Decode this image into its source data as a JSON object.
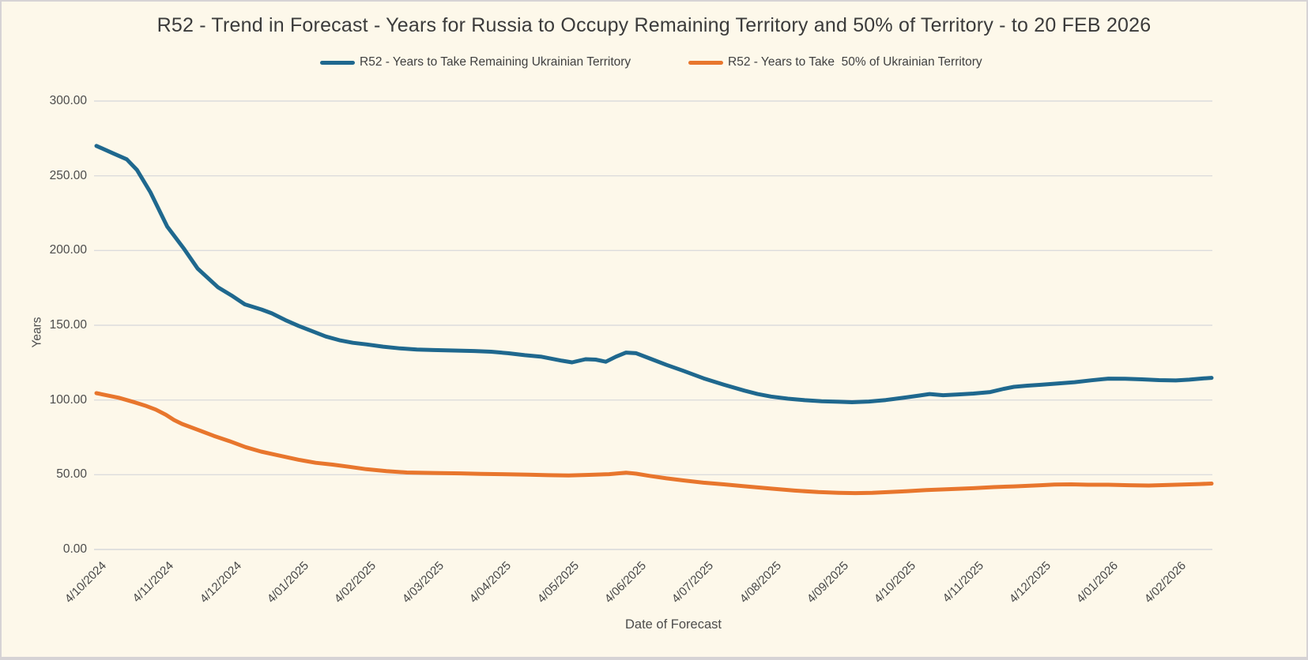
{
  "chart_data": {
    "type": "line",
    "title": "R52 - Trend in Forecast - Years for Russia to Occupy Remaining Territory and 50% of Territory - to 20 FEB 2026",
    "xlabel": "Date of Forecast",
    "ylabel": "Years",
    "ylim": [
      0,
      300
    ],
    "ytick_step": 50,
    "ytick_labels": [
      "0.00",
      "50.00",
      "100.00",
      "150.00",
      "200.00",
      "250.00",
      "300.00"
    ],
    "grid": true,
    "legend_position": "top",
    "x_unit": "months_since_first_tick",
    "x_range_months": [
      0,
      16.53
    ],
    "xtick_labels": [
      "4/10/2024",
      "4/11/2024",
      "4/12/2024",
      "4/01/2025",
      "4/02/2025",
      "4/03/2025",
      "4/04/2025",
      "4/05/2025",
      "4/06/2025",
      "4/07/2025",
      "4/08/2025",
      "4/09/2025",
      "4/10/2025",
      "4/11/2025",
      "4/12/2025",
      "4/01/2026",
      "4/02/2026"
    ],
    "colors": {
      "background": "#fdf8ea",
      "border": "#d6d3d5",
      "gridline": "#dcdcdc",
      "series_remaining": "#1f688e",
      "series_half": "#e8762d",
      "title_text": "#3b3b3b",
      "axis_text": "#4c4c4c"
    },
    "series": [
      {
        "name": "R52 - Years to Take Remaining Ukrainian Territory",
        "color": "#1f688e",
        "points": [
          [
            0,
            270
          ],
          [
            0.25,
            265
          ],
          [
            0.45,
            261
          ],
          [
            0.6,
            254
          ],
          [
            0.8,
            239
          ],
          [
            1.05,
            216
          ],
          [
            1.3,
            201
          ],
          [
            1.5,
            188
          ],
          [
            1.8,
            175.5
          ],
          [
            2.0,
            170
          ],
          [
            2.2,
            164
          ],
          [
            2.45,
            160.5
          ],
          [
            2.6,
            158
          ],
          [
            2.8,
            153.5
          ],
          [
            3.0,
            149.5
          ],
          [
            3.2,
            146
          ],
          [
            3.4,
            142.5
          ],
          [
            3.6,
            140
          ],
          [
            3.8,
            138.3
          ],
          [
            4.0,
            137.2
          ],
          [
            4.25,
            135.7
          ],
          [
            4.5,
            134.5
          ],
          [
            4.75,
            133.8
          ],
          [
            5.0,
            133.4
          ],
          [
            5.3,
            133.1
          ],
          [
            5.6,
            132.8
          ],
          [
            5.85,
            132.3
          ],
          [
            6.1,
            131.3
          ],
          [
            6.35,
            130
          ],
          [
            6.6,
            128.9
          ],
          [
            6.9,
            126.3
          ],
          [
            7.05,
            125.2
          ],
          [
            7.25,
            127.3
          ],
          [
            7.4,
            127
          ],
          [
            7.55,
            125.6
          ],
          [
            7.7,
            129
          ],
          [
            7.85,
            131.7
          ],
          [
            8.0,
            131.3
          ],
          [
            8.2,
            127.8
          ],
          [
            8.45,
            123.5
          ],
          [
            8.7,
            119.5
          ],
          [
            9.0,
            114.5
          ],
          [
            9.3,
            110.3
          ],
          [
            9.6,
            106.3
          ],
          [
            9.8,
            104
          ],
          [
            10.0,
            102.3
          ],
          [
            10.25,
            100.9
          ],
          [
            10.5,
            99.9
          ],
          [
            10.75,
            99.2
          ],
          [
            11.0,
            98.8
          ],
          [
            11.2,
            98.5
          ],
          [
            11.45,
            99
          ],
          [
            11.7,
            100
          ],
          [
            12.0,
            101.7
          ],
          [
            12.2,
            103
          ],
          [
            12.35,
            104
          ],
          [
            12.55,
            103.2
          ],
          [
            12.75,
            103.7
          ],
          [
            13.0,
            104.3
          ],
          [
            13.25,
            105.3
          ],
          [
            13.45,
            107.5
          ],
          [
            13.6,
            108.8
          ],
          [
            13.8,
            109.6
          ],
          [
            14.0,
            110.2
          ],
          [
            14.25,
            111
          ],
          [
            14.5,
            111.9
          ],
          [
            14.75,
            113.2
          ],
          [
            15.0,
            114.3
          ],
          [
            15.25,
            114.2
          ],
          [
            15.5,
            113.8
          ],
          [
            15.75,
            113.3
          ],
          [
            16.0,
            113.1
          ],
          [
            16.2,
            113.6
          ],
          [
            16.4,
            114.4
          ],
          [
            16.53,
            114.8
          ]
        ]
      },
      {
        "name": "R52 - Years to Take  50% of Ukrainian Territory",
        "color": "#e8762d",
        "points": [
          [
            0,
            104.6
          ],
          [
            0.33,
            101.5
          ],
          [
            0.57,
            98.4
          ],
          [
            0.72,
            96.3
          ],
          [
            0.88,
            93.6
          ],
          [
            1.03,
            90.1
          ],
          [
            1.15,
            86.6
          ],
          [
            1.27,
            84
          ],
          [
            1.5,
            80.1
          ],
          [
            1.74,
            76
          ],
          [
            1.97,
            72.5
          ],
          [
            2.21,
            68.5
          ],
          [
            2.44,
            65.5
          ],
          [
            2.67,
            63.2
          ],
          [
            3.0,
            60
          ],
          [
            3.25,
            58
          ],
          [
            3.5,
            56.8
          ],
          [
            3.75,
            55.3
          ],
          [
            4.0,
            53.7
          ],
          [
            4.3,
            52.4
          ],
          [
            4.6,
            51.5
          ],
          [
            5.0,
            51.2
          ],
          [
            5.4,
            50.9
          ],
          [
            5.7,
            50.6
          ],
          [
            6.0,
            50.4
          ],
          [
            6.4,
            50
          ],
          [
            6.7,
            49.7
          ],
          [
            7.0,
            49.5
          ],
          [
            7.3,
            49.9
          ],
          [
            7.6,
            50.4
          ],
          [
            7.85,
            51.4
          ],
          [
            8.0,
            50.7
          ],
          [
            8.2,
            49.2
          ],
          [
            8.45,
            47.6
          ],
          [
            8.7,
            46.2
          ],
          [
            9.0,
            44.7
          ],
          [
            9.3,
            43.6
          ],
          [
            9.6,
            42.3
          ],
          [
            10.0,
            40.7
          ],
          [
            10.35,
            39.4
          ],
          [
            10.7,
            38.4
          ],
          [
            11.0,
            37.9
          ],
          [
            11.25,
            37.7
          ],
          [
            11.5,
            37.9
          ],
          [
            11.75,
            38.4
          ],
          [
            12.0,
            39
          ],
          [
            12.3,
            39.7
          ],
          [
            12.6,
            40.3
          ],
          [
            13.0,
            41
          ],
          [
            13.3,
            41.7
          ],
          [
            13.6,
            42.2
          ],
          [
            14.0,
            43
          ],
          [
            14.2,
            43.4
          ],
          [
            14.45,
            43.6
          ],
          [
            14.7,
            43.3
          ],
          [
            15.0,
            43.3
          ],
          [
            15.3,
            43
          ],
          [
            15.6,
            42.8
          ],
          [
            15.85,
            43.1
          ],
          [
            16.1,
            43.4
          ],
          [
            16.35,
            43.8
          ],
          [
            16.53,
            44.1
          ]
        ]
      }
    ]
  }
}
